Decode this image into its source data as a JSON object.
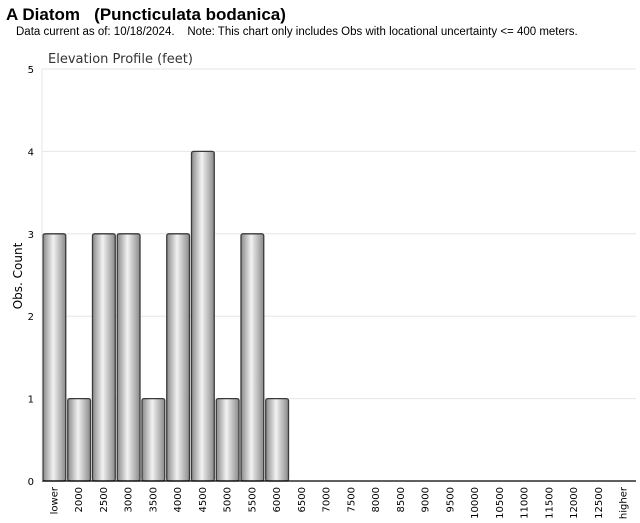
{
  "header": {
    "title": "A Diatom   (Puncticulata bodanica)",
    "subtitle": "Data current as of: 10/18/2024.    Note: This chart only includes Obs with locational uncertainty <= 400 meters."
  },
  "chart_data": {
    "type": "bar",
    "title": "Elevation Profile (feet)",
    "xlabel": "",
    "ylabel": "Obs. Count",
    "ylim": [
      0,
      5
    ],
    "yticks": [
      "0",
      "1",
      "2",
      "3",
      "4",
      "5"
    ],
    "grid": true,
    "categories": [
      "lower",
      "2000",
      "2500",
      "3000",
      "3500",
      "4000",
      "4500",
      "5000",
      "5500",
      "6000",
      "6500",
      "7000",
      "7500",
      "8000",
      "8500",
      "9000",
      "9500",
      "10000",
      "10500",
      "11000",
      "11500",
      "12000",
      "12500",
      "higher"
    ],
    "values": [
      3,
      1,
      3,
      3,
      1,
      3,
      4,
      1,
      3,
      1,
      0,
      0,
      0,
      0,
      0,
      0,
      0,
      0,
      0,
      0,
      0,
      0,
      0,
      0
    ],
    "colors": {
      "bar_light": "#f2f2f2",
      "bar_dark": "#8a8a8a",
      "bar_stroke": "#3a3a3a",
      "grid": "#e6e6e6",
      "axis": "#000000"
    }
  }
}
